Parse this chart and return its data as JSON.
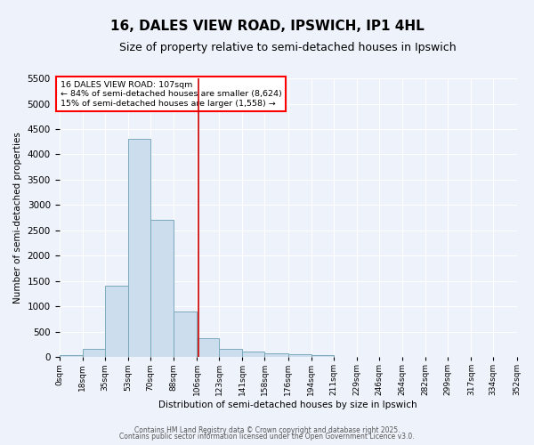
{
  "title": "16, DALES VIEW ROAD, IPSWICH, IP1 4HL",
  "subtitle": "Size of property relative to semi-detached houses in Ipswich",
  "xlabel": "Distribution of semi-detached houses by size in Ipswich",
  "ylabel": "Number of semi-detached properties",
  "property_line_x": 107,
  "annotation_title": "16 DALES VIEW ROAD: 107sqm",
  "annotation_line1": "← 84% of semi-detached houses are smaller (8,624)",
  "annotation_line2": "15% of semi-detached houses are larger (1,558) →",
  "footer1": "Contains HM Land Registry data © Crown copyright and database right 2025.",
  "footer2": "Contains public sector information licensed under the Open Government Licence v3.0.",
  "bin_edges": [
    0,
    18,
    35,
    53,
    70,
    88,
    106,
    123,
    141,
    158,
    176,
    194,
    211,
    229,
    246,
    264,
    282,
    299,
    317,
    334,
    352
  ],
  "bin_counts": [
    30,
    160,
    1400,
    4300,
    2700,
    900,
    375,
    160,
    110,
    80,
    50,
    30,
    0,
    0,
    0,
    0,
    0,
    0,
    0,
    0
  ],
  "bar_color": "#ccdded",
  "bar_edge_color": "#7aaabb",
  "vline_color": "#cc0000",
  "background_color": "#eef2fa",
  "grid_color": "white",
  "ylim": [
    0,
    5500
  ],
  "yticks": [
    0,
    500,
    1000,
    1500,
    2000,
    2500,
    3000,
    3500,
    4000,
    4500,
    5000,
    5500
  ],
  "title_fontsize": 11,
  "subtitle_fontsize": 9
}
